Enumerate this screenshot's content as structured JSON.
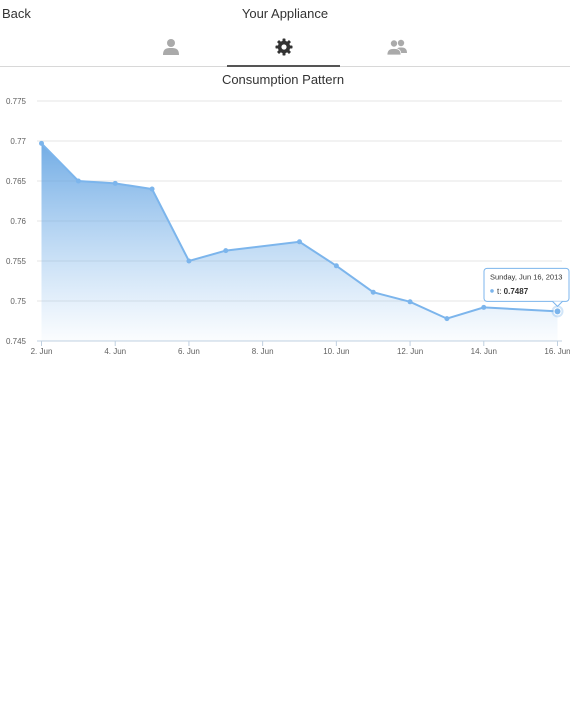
{
  "header": {
    "back_label": "Back",
    "title": "Your Appliance"
  },
  "tabs": [
    {
      "icon": "user-icon",
      "active": false
    },
    {
      "icon": "gear-icon",
      "active": true
    },
    {
      "icon": "users-icon",
      "active": false
    }
  ],
  "colors": {
    "series": "#7cb5ec",
    "series_dark": "#5a9ee0",
    "grid": "#e6e6e6",
    "active_icon": "#333333",
    "inactive_icon": "#aaaaaa"
  },
  "chart_data": {
    "type": "area",
    "title": "Consumption Pattern",
    "xlabel": "",
    "ylabel": "",
    "ylim": [
      0.745,
      0.775
    ],
    "yticks": [
      0.745,
      0.75,
      0.755,
      0.76,
      0.765,
      0.77,
      0.775
    ],
    "ytick_labels": [
      "0.745",
      "0.75",
      "0.755",
      "0.76",
      "0.765",
      "0.77",
      "0.775"
    ],
    "xlim": [
      "2013-06-02",
      "2013-06-16"
    ],
    "xtick_dates": [
      "2013-06-02",
      "2013-06-04",
      "2013-06-06",
      "2013-06-08",
      "2013-06-10",
      "2013-06-12",
      "2013-06-14",
      "2013-06-16"
    ],
    "xtick_labels": [
      "2. Jun",
      "4. Jun",
      "6. Jun",
      "8. Jun",
      "10. Jun",
      "12. Jun",
      "14. Jun",
      "16. Jun"
    ],
    "grid": true,
    "legend": "none",
    "series": [
      {
        "name": "t",
        "points": [
          [
            "2013-06-02",
            0.7697
          ],
          [
            "2013-06-03",
            0.765
          ],
          [
            "2013-06-04",
            0.7647
          ],
          [
            "2013-06-05",
            0.764
          ],
          [
            "2013-06-06",
            0.755
          ],
          [
            "2013-06-07",
            0.7563
          ],
          [
            "2013-06-09",
            0.7574
          ],
          [
            "2013-06-10",
            0.7544
          ],
          [
            "2013-06-11",
            0.7511
          ],
          [
            "2013-06-12",
            0.7499
          ],
          [
            "2013-06-13",
            0.7478
          ],
          [
            "2013-06-14",
            0.7492
          ],
          [
            "2013-06-16",
            0.7487
          ]
        ]
      }
    ],
    "tooltip": {
      "date_label": "Sunday, Jun 16, 2013",
      "series_label": "t:",
      "value_label": "0.7487",
      "point_index": 12
    }
  }
}
